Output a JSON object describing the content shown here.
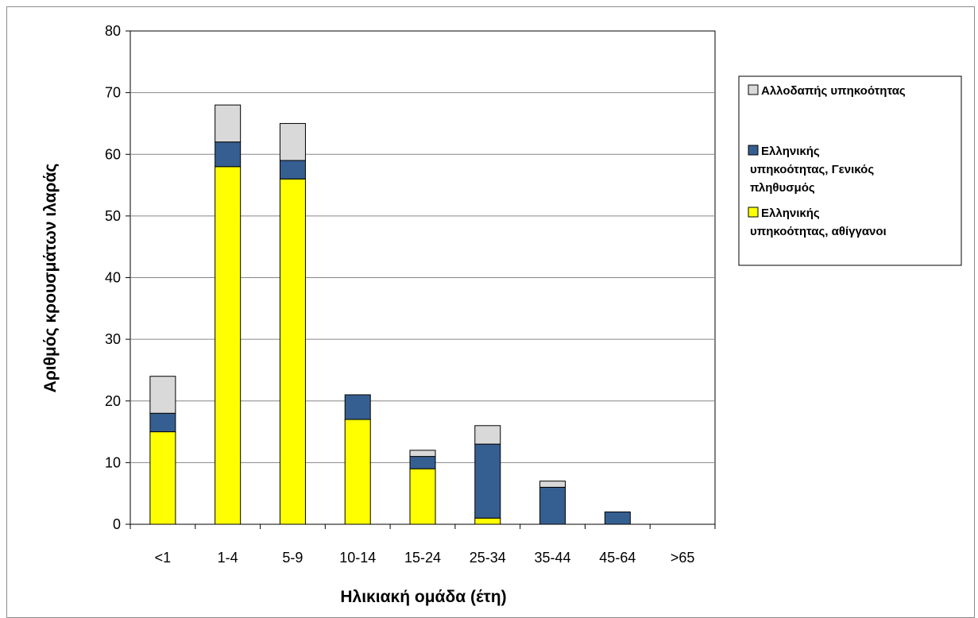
{
  "chart_data": {
    "type": "bar",
    "stacked": true,
    "categories": [
      "<1",
      "1-4",
      "5-9",
      "10-14",
      "15-24",
      "25-34",
      "35-44",
      "45-64",
      ">65"
    ],
    "series": [
      {
        "name": "Ελληνικής υπηκοότητας, αθίγγανοι",
        "color": "#FFFF00",
        "values": [
          15,
          58,
          56,
          17,
          9,
          1,
          0,
          0,
          0
        ]
      },
      {
        "name": "Ελληνικής υπηκοότητας, Γενικός πληθυσμός",
        "color": "#365F91",
        "values": [
          3,
          4,
          3,
          4,
          2,
          12,
          6,
          2,
          0
        ]
      },
      {
        "name": "Αλλοδαπής υπηκοότητας",
        "color": "#D9D9D9",
        "values": [
          6,
          6,
          6,
          0,
          1,
          3,
          1,
          0,
          0
        ]
      }
    ],
    "xlabel": "Ηλικιακή ομάδα (έτη)",
    "ylabel": "Αριθμός κρουσμάτων ιλαράς",
    "ylim": [
      0,
      80
    ],
    "yticks": [
      0,
      10,
      20,
      30,
      40,
      50,
      60,
      70,
      80
    ],
    "grid": true,
    "legend_position": "right",
    "legend_order": [
      2,
      1,
      0
    ],
    "legend_lines": [
      [
        "Αλλοδαπής υπηκοότητας"
      ],
      [
        "Ελληνικής",
        "υπηκοότητας, Γενικός",
        "πληθυσμός"
      ],
      [
        "Ελληνικής",
        "υπηκοότητας, αθίγγανοι"
      ]
    ]
  }
}
